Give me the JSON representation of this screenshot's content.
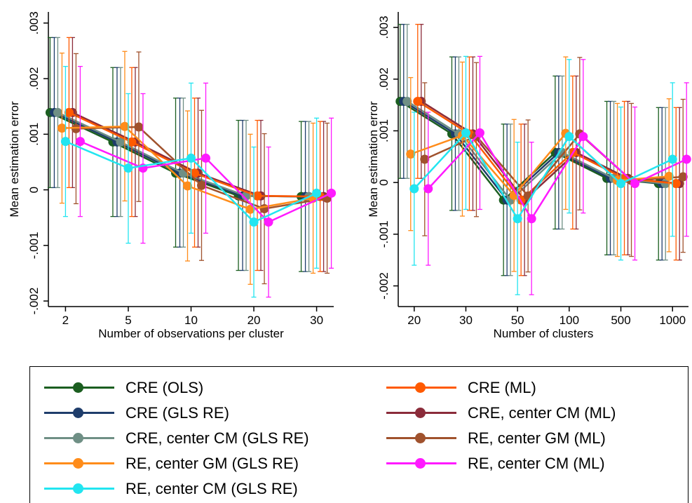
{
  "chart_data": [
    {
      "type": "line",
      "title": "",
      "xlabel": "Number of observations per cluster",
      "ylabel": "Mean estimation error",
      "categories": [
        "2",
        "5",
        "10",
        "20",
        "30"
      ],
      "ylim": [
        -0.0021,
        0.0032
      ],
      "yticks": [
        -0.002,
        -0.001,
        0,
        0.001,
        0.002,
        0.003
      ],
      "ytick_labels": [
        "-.002",
        "-.001",
        "0",
        ".001",
        ".002",
        ".003"
      ],
      "grid": false,
      "series": [
        {
          "name": "CRE (OLS)",
          "values": [
            0.00139,
            0.00086,
            0.0003,
            -0.00011,
            -0.00012
          ],
          "lower": [
            4e-05,
            -0.00048,
            -0.00103,
            -0.00145,
            -0.00147
          ],
          "upper": [
            0.00274,
            0.0022,
            0.00165,
            0.00125,
            0.00123
          ]
        },
        {
          "name": "CRE (GLS RE)",
          "values": [
            0.00139,
            0.00086,
            0.0003,
            -0.00011,
            -0.00012
          ],
          "lower": [
            4e-05,
            -0.00048,
            -0.00103,
            -0.00145,
            -0.00147
          ],
          "upper": [
            0.00274,
            0.0022,
            0.00165,
            0.00125,
            0.00123
          ]
        },
        {
          "name": "CRE, center CM (GLS RE)",
          "values": [
            0.00139,
            0.00086,
            0.0003,
            -0.00011,
            -0.00012
          ],
          "lower": [
            4e-05,
            -0.00048,
            -0.00103,
            -0.00145,
            -0.00147
          ],
          "upper": [
            0.00274,
            0.0022,
            0.00165,
            0.00125,
            0.00123
          ]
        },
        {
          "name": "RE, center GM (GLS RE)",
          "values": [
            0.00111,
            0.00114,
            7e-05,
            -0.00035,
            -0.00015
          ],
          "lower": [
            -0.00024,
            -0.0002,
            -0.00128,
            -0.0017,
            -0.0015
          ],
          "upper": [
            0.00246,
            0.00249,
            0.00142,
            0.001,
            0.0012
          ]
        },
        {
          "name": "RE, center CM (GLS RE)",
          "values": [
            0.00087,
            0.00039,
            0.00057,
            -0.00058,
            -6e-05
          ],
          "lower": [
            -0.00048,
            -0.00096,
            -0.00078,
            -0.00193,
            -0.00141
          ],
          "upper": [
            0.00222,
            0.00173,
            0.00192,
            0.00077,
            0.00129
          ]
        },
        {
          "name": "CRE (ML)",
          "values": [
            0.00139,
            0.00086,
            0.0003,
            -0.00011,
            -0.00012
          ],
          "lower": [
            4e-05,
            -0.00048,
            -0.00103,
            -0.00145,
            -0.00147
          ],
          "upper": [
            0.00274,
            0.0022,
            0.00165,
            0.00125,
            0.00123
          ]
        },
        {
          "name": "CRE, center CM (ML)",
          "values": [
            0.00139,
            0.00086,
            0.0003,
            -0.00011,
            -0.00012
          ],
          "lower": [
            4e-05,
            -0.00048,
            -0.00103,
            -0.00145,
            -0.00147
          ],
          "upper": [
            0.00274,
            0.0022,
            0.00165,
            0.00125,
            0.00123
          ]
        },
        {
          "name": "RE, center GM (ML)",
          "values": [
            0.0011,
            0.00113,
            8e-05,
            -0.00034,
            -0.00015
          ],
          "lower": [
            -0.00025,
            -0.00021,
            -0.00127,
            -0.00169,
            -0.0015
          ],
          "upper": [
            0.00245,
            0.00248,
            0.00143,
            0.00101,
            0.0012
          ]
        },
        {
          "name": "RE, center CM (ML)",
          "values": [
            0.00087,
            0.00039,
            0.00057,
            -0.00058,
            -6e-05
          ],
          "lower": [
            -0.00048,
            -0.00096,
            -0.00078,
            -0.00193,
            -0.00141
          ],
          "upper": [
            0.00222,
            0.00173,
            0.00192,
            0.00077,
            0.00129
          ]
        }
      ]
    },
    {
      "type": "line",
      "title": "",
      "xlabel": "Number of clusters",
      "ylabel": "Mean estimation error",
      "categories": [
        "20",
        "30",
        "50",
        "100",
        "500",
        "1000"
      ],
      "ylim": [
        -0.0024,
        0.0033
      ],
      "yticks": [
        -0.002,
        -0.001,
        0,
        0.001,
        0.002,
        0.003
      ],
      "ytick_labels": [
        "-.002",
        "-.001",
        "0",
        ".001",
        ".002",
        ".003"
      ],
      "grid": false,
      "series": [
        {
          "name": "CRE (OLS)",
          "values": [
            0.00157,
            0.00094,
            -0.00034,
            0.00058,
            8e-05,
            -2e-05
          ],
          "lower": [
            8e-05,
            -0.00054,
            -0.0018,
            -0.0009,
            -0.0014,
            -0.0015
          ],
          "upper": [
            0.00306,
            0.00243,
            0.00113,
            0.00206,
            0.00157,
            0.00145
          ]
        },
        {
          "name": "CRE (GLS RE)",
          "values": [
            0.00157,
            0.00094,
            -0.00034,
            0.00058,
            8e-05,
            -2e-05
          ],
          "lower": [
            8e-05,
            -0.00054,
            -0.0018,
            -0.0009,
            -0.0014,
            -0.0015
          ],
          "upper": [
            0.00306,
            0.00243,
            0.00113,
            0.00206,
            0.00157,
            0.00145
          ]
        },
        {
          "name": "CRE, center CM (GLS RE)",
          "values": [
            0.00157,
            0.00094,
            -0.00034,
            0.00058,
            8e-05,
            -2e-05
          ],
          "lower": [
            8e-05,
            -0.00054,
            -0.0018,
            -0.0009,
            -0.0014,
            -0.0015
          ],
          "upper": [
            0.00306,
            0.00243,
            0.00113,
            0.00206,
            0.00157,
            0.00145
          ]
        },
        {
          "name": "RE, center GM (GLS RE)",
          "values": [
            0.00055,
            0.00091,
            -0.00025,
            0.00095,
            4e-05,
            0.00012
          ],
          "lower": [
            -0.00093,
            -0.00065,
            -0.00172,
            -0.00052,
            -0.00143,
            -0.00134
          ],
          "upper": [
            0.00203,
            0.00233,
            0.00122,
            0.00243,
            0.00153,
            0.00162
          ]
        },
        {
          "name": "RE, center CM (GLS RE)",
          "values": [
            -0.00012,
            0.00096,
            -0.0007,
            0.00089,
            -2e-05,
            0.00045
          ],
          "lower": [
            -0.0016,
            -0.00052,
            -0.00217,
            -0.00059,
            -0.0015,
            -0.00104
          ],
          "upper": [
            0.00136,
            0.00244,
            0.00078,
            0.00238,
            0.00146,
            0.00193
          ]
        },
        {
          "name": "CRE (ML)",
          "values": [
            0.00157,
            0.00094,
            -0.00034,
            0.00058,
            8e-05,
            -2e-05
          ],
          "lower": [
            8e-05,
            -0.00054,
            -0.0018,
            -0.0009,
            -0.0014,
            -0.0015
          ],
          "upper": [
            0.00306,
            0.00243,
            0.00113,
            0.00206,
            0.00157,
            0.00145
          ]
        },
        {
          "name": "CRE, center CM (ML)",
          "values": [
            0.00157,
            0.00094,
            -0.00034,
            0.00058,
            8e-05,
            -2e-05
          ],
          "lower": [
            8e-05,
            -0.00054,
            -0.0018,
            -0.0009,
            -0.0014,
            -0.0015
          ],
          "upper": [
            0.00306,
            0.00243,
            0.00113,
            0.00206,
            0.00157,
            0.00145
          ]
        },
        {
          "name": "RE, center GM (ML)",
          "values": [
            0.00045,
            0.0009,
            -0.00026,
            0.00094,
            4e-05,
            0.00011
          ],
          "lower": [
            -0.00103,
            -0.00066,
            -0.00173,
            -0.00053,
            -0.00143,
            -0.00135
          ],
          "upper": [
            0.00193,
            0.00232,
            0.00121,
            0.00242,
            0.00153,
            0.00161
          ]
        },
        {
          "name": "RE, center CM (ML)",
          "values": [
            -0.00012,
            0.00096,
            -0.0007,
            0.00089,
            -2e-05,
            0.00045
          ],
          "lower": [
            -0.0016,
            -0.00052,
            -0.00217,
            -0.00059,
            -0.0015,
            -0.00104
          ],
          "upper": [
            0.00136,
            0.00244,
            0.00078,
            0.00238,
            0.00146,
            0.00193
          ]
        }
      ]
    }
  ],
  "series_colors": [
    "#1b5e20",
    "#1f3d6b",
    "#6f8f85",
    "#ff8c1a",
    "#22e5f0",
    "#ff5a00",
    "#8b2c3a",
    "#a0522d",
    "#ff1aff"
  ],
  "legend": {
    "items": [
      {
        "label": "CRE (OLS)",
        "color": "#1b5e20"
      },
      {
        "label": "CRE (GLS RE)",
        "color": "#1f3d6b"
      },
      {
        "label": "CRE, center CM (GLS RE)",
        "color": "#6f8f85"
      },
      {
        "label": "RE, center GM (GLS RE)",
        "color": "#ff8c1a"
      },
      {
        "label": "RE, center CM (GLS RE)",
        "color": "#22e5f0"
      },
      {
        "label": "CRE (ML)",
        "color": "#ff5a00"
      },
      {
        "label": "CRE, center CM (ML)",
        "color": "#8b2c3a"
      },
      {
        "label": "RE, center GM (ML)",
        "color": "#a0522d"
      },
      {
        "label": "RE, center CM (ML)",
        "color": "#ff1aff"
      }
    ]
  }
}
